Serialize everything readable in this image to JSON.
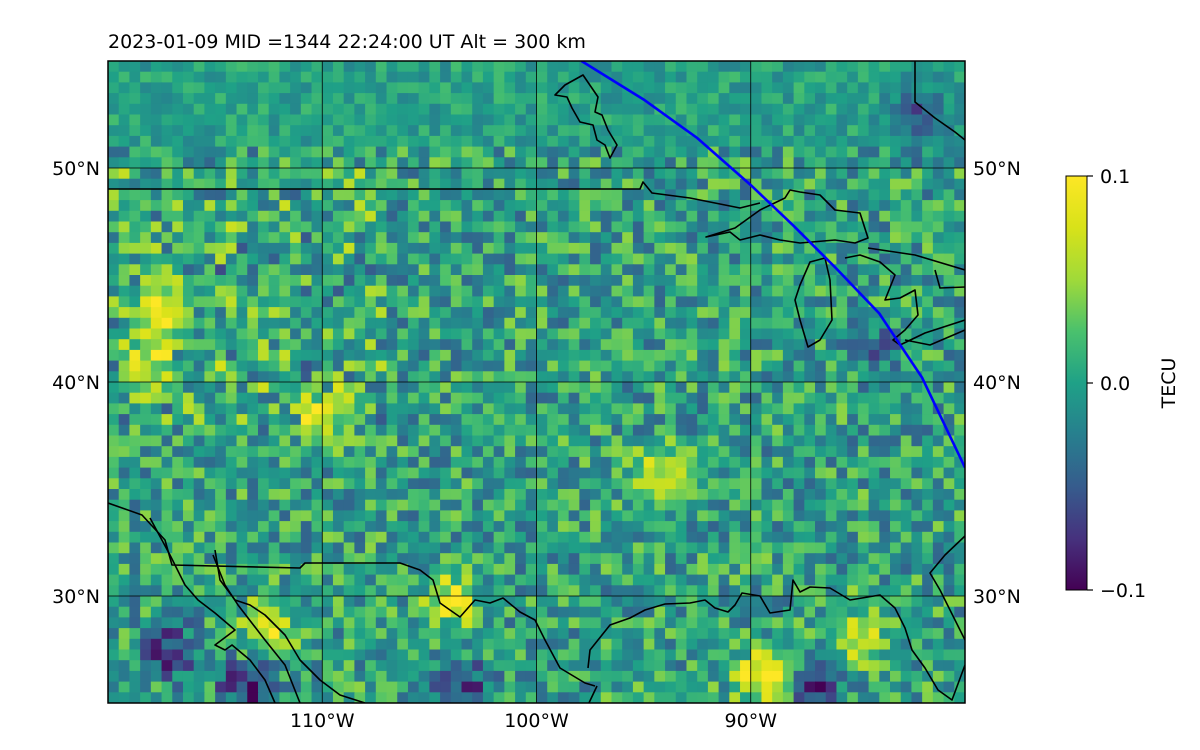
{
  "chart_data": {
    "type": "heatmap",
    "title": "2023-01-09  MID =1344    22:24:00  UT  Alt = 300 km",
    "map": {
      "lon_range": [
        -120,
        -80
      ],
      "lat_range": [
        25,
        55
      ],
      "xticks": [
        -110,
        -100,
        -90
      ],
      "xtick_labels": [
        "110°W",
        "100°W",
        "90°W"
      ],
      "yticks": [
        30,
        40,
        50
      ],
      "ytick_labels": [
        "30°N",
        "40°N",
        "50°N"
      ],
      "grid": true,
      "coastlines": true,
      "borders": true
    },
    "track": {
      "name": "",
      "color": "#0000ff",
      "lon": [
        -97.9,
        -95,
        -92.5,
        -90,
        -88,
        -86,
        -84,
        -82,
        -80
      ],
      "lat": [
        55,
        53.2,
        51.4,
        49.2,
        47.3,
        45.3,
        43.2,
        40.2,
        36
      ]
    },
    "colorbar": {
      "label": "TECU",
      "range": [
        -0.1,
        0.1
      ],
      "ticks": [
        0.1,
        0.0,
        -0.1
      ],
      "tick_labels": [
        "0.1",
        "0.0",
        "−0.1"
      ],
      "colormap": "viridis"
    },
    "field": {
      "description_units": "TECU",
      "resolution_deg": 0.5,
      "hotspots": [
        {
          "lon": -112.5,
          "lat": 28.5,
          "value": 0.1
        },
        {
          "lon": -117.5,
          "lat": 43.5,
          "value": 0.08
        },
        {
          "lon": -104.0,
          "lat": 29.8,
          "value": 0.09
        },
        {
          "lon": -85.0,
          "lat": 28.2,
          "value": 0.08
        },
        {
          "lon": -89.5,
          "lat": 26.2,
          "value": 0.1
        },
        {
          "lon": -94.0,
          "lat": 35.8,
          "value": 0.08
        },
        {
          "lon": -110.0,
          "lat": 38.5,
          "value": 0.06
        },
        {
          "lon": -118.0,
          "lat": 41.0,
          "value": 0.07
        },
        {
          "lon": -117.0,
          "lat": 27.5,
          "value": -0.08
        },
        {
          "lon": -113.5,
          "lat": 25.7,
          "value": -0.09
        },
        {
          "lon": -82.0,
          "lat": 52.5,
          "value": -0.06
        },
        {
          "lon": -84.5,
          "lat": 41.5,
          "value": -0.05
        },
        {
          "lon": -87.0,
          "lat": 26.0,
          "value": -0.07
        },
        {
          "lon": -103.5,
          "lat": 25.8,
          "value": -0.07
        }
      ]
    }
  }
}
